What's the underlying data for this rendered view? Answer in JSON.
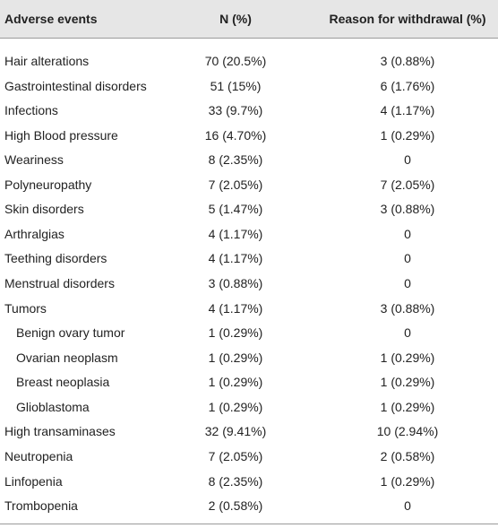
{
  "table": {
    "header": [
      "Adverse events",
      "N (%)",
      "Reason for withdrawal (%)"
    ],
    "rows": [
      [
        "Hair alterations",
        "70 (20.5%)",
        "3 (0.88%)"
      ],
      [
        "Gastrointestinal disorders",
        "51 (15%)",
        "6 (1.76%)"
      ],
      [
        "Infections",
        "33 (9.7%)",
        "4 (1.17%)"
      ],
      [
        "High Blood pressure",
        "16 (4.70%)",
        "1 (0.29%)"
      ],
      [
        "Weariness",
        "8 (2.35%)",
        "0"
      ],
      [
        "Polyneuropathy",
        "7 (2.05%)",
        "7 (2.05%)"
      ],
      [
        "Skin disorders",
        "5 (1.47%)",
        "3 (0.88%)"
      ],
      [
        "Arthralgias",
        "4 (1.17%)",
        "0"
      ],
      [
        "Teething disorders",
        "4 (1.17%)",
        "0"
      ],
      [
        "Menstrual disorders",
        "3 (0.88%)",
        "0"
      ],
      [
        "Tumors",
        "4 (1.17%)",
        "3 (0.88%)"
      ],
      [
        "Benign ovary tumor",
        "1 (0.29%)",
        "0"
      ],
      [
        "Ovarian neoplasm",
        "1 (0.29%)",
        "1 (0.29%)"
      ],
      [
        "Breast neoplasia",
        "1 (0.29%)",
        "1 (0.29%)"
      ],
      [
        "Glioblastoma",
        "1 (0.29%)",
        "1 (0.29%)"
      ],
      [
        "High transaminases",
        "32 (9.41%)",
        "10 (2.94%)"
      ],
      [
        "Neutropenia",
        "7 (2.05%)",
        "2 (0.58%)"
      ],
      [
        "Linfopenia",
        "8 (2.35%)",
        "1 (0.29%)"
      ],
      [
        "Trombopenia",
        "2 (0.58%)",
        "0"
      ]
    ]
  }
}
